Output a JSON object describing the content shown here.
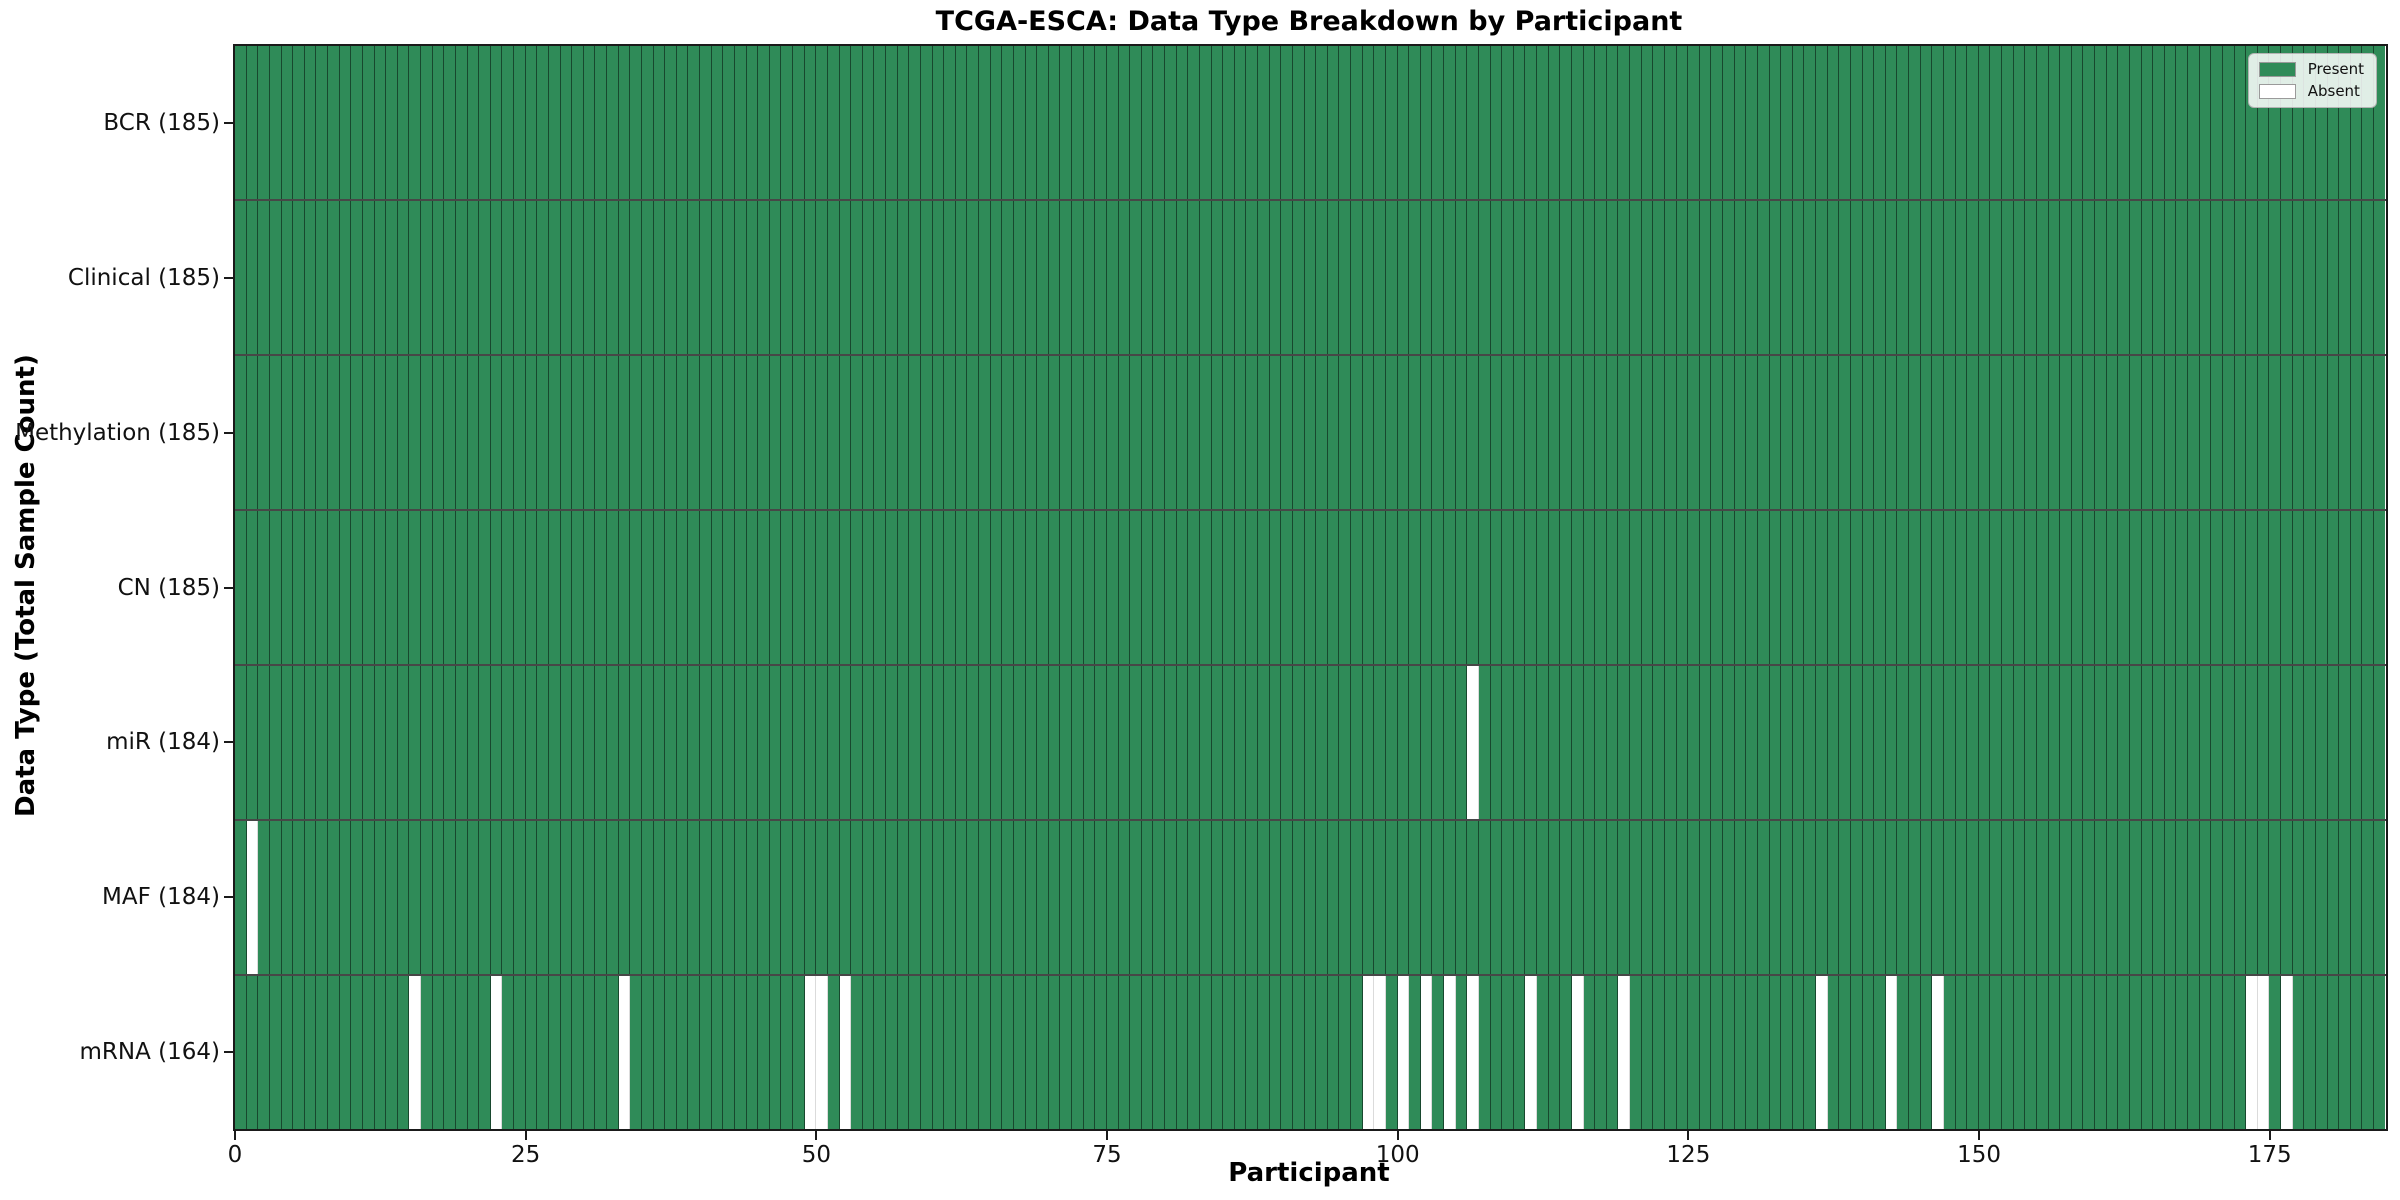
{
  "chart_data": {
    "type": "heatmap",
    "title": "TCGA-ESCA: Data Type Breakdown by Participant",
    "xlabel": "Participant",
    "ylabel": "Data Type (Total Sample Count)",
    "n_participants": 185,
    "x_ticks": [
      0,
      25,
      50,
      75,
      100,
      125,
      150,
      175
    ],
    "x_range": [
      0,
      185
    ],
    "grid": false,
    "legend_position": "upper right",
    "rows": [
      {
        "name": "BCR",
        "label": "BCR (185)",
        "total": 185,
        "absent_participants": []
      },
      {
        "name": "Clinical",
        "label": "Clinical (185)",
        "total": 185,
        "absent_participants": []
      },
      {
        "name": "Methylation",
        "label": "Methylation (185)",
        "total": 185,
        "absent_participants": []
      },
      {
        "name": "CN",
        "label": "CN (185)",
        "total": 185,
        "absent_participants": []
      },
      {
        "name": "miR",
        "label": "miR (184)",
        "total": 184,
        "absent_participants": [
          106
        ]
      },
      {
        "name": "MAF",
        "label": "MAF (184)",
        "total": 184,
        "absent_participants": [
          1
        ]
      },
      {
        "name": "mRNA",
        "label": "mRNA (164)",
        "total": 164,
        "absent_participants": [
          15,
          22,
          33,
          49,
          50,
          52,
          97,
          98,
          100,
          102,
          104,
          106,
          111,
          115,
          119,
          136,
          142,
          146,
          173,
          174,
          176
        ]
      }
    ],
    "legend": [
      {
        "label": "Present",
        "color": "#2f8b58"
      },
      {
        "label": "Absent",
        "color": "#ffffff"
      }
    ],
    "colors": {
      "present": "#2f8b58",
      "absent": "#ffffff",
      "bar_edge": "rgba(0,0,0,0.48)",
      "row_separator": "rgba(0,0,0,0.72)",
      "spine": "#1a1a1a"
    }
  }
}
